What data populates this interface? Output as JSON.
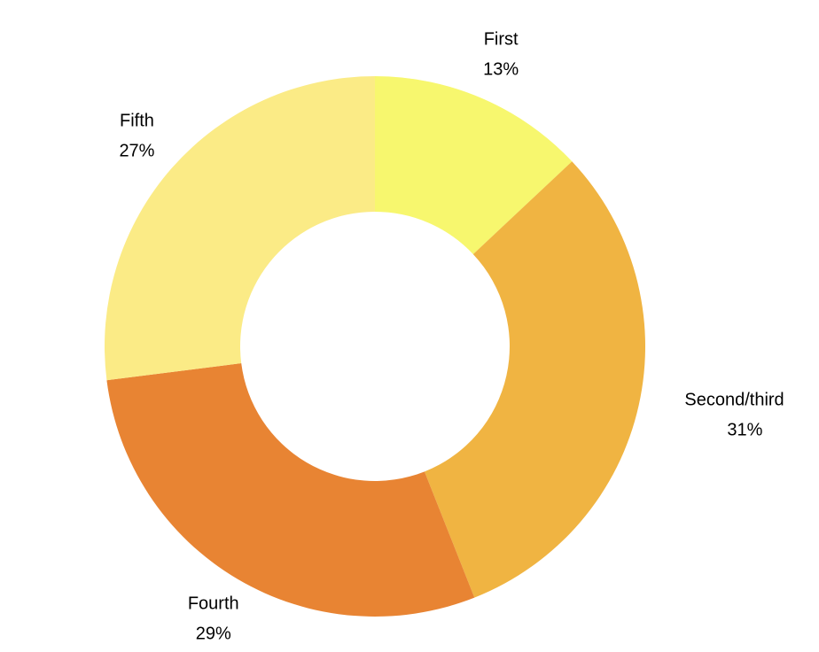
{
  "chart_data": {
    "type": "pie",
    "categories": [
      "First",
      "Second/third",
      "Fourth",
      "Fifth"
    ],
    "values": [
      13,
      31,
      29,
      27
    ],
    "value_labels": [
      "13%",
      "31%",
      "29%",
      "27%"
    ],
    "colors": [
      "#f7f76e",
      "#f0b442",
      "#e88433",
      "#fbeb86"
    ]
  }
}
